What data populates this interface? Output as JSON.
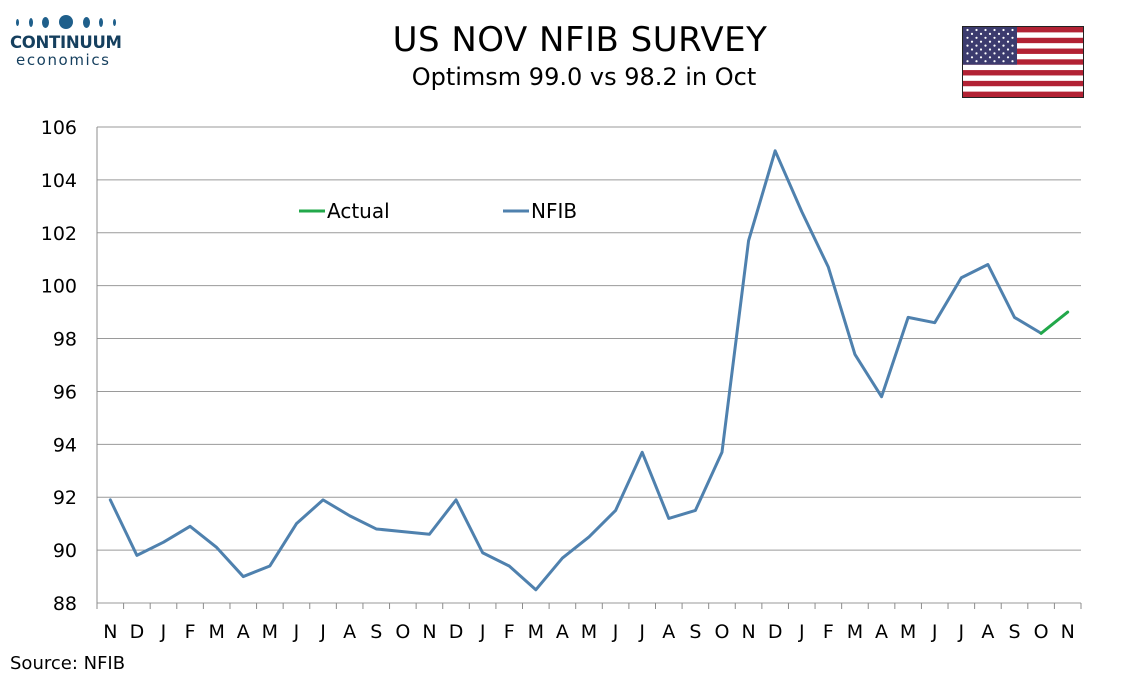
{
  "logo": {
    "name": "CONTINUUM",
    "sub": "economics"
  },
  "header": {
    "title": "US NOV NFIB SURVEY",
    "subtitle": "Optimsm 99.0 vs 98.2 in Oct"
  },
  "flag": {
    "icon": "us-flag-icon"
  },
  "source": "Source: NFIB",
  "colors": {
    "nfib": "#4f81ae",
    "actual": "#22a84a",
    "grid": "#9a9a9a"
  },
  "chart_data": {
    "type": "line",
    "categories": [
      "N",
      "D",
      "J",
      "F",
      "M",
      "A",
      "M",
      "J",
      "J",
      "A",
      "S",
      "O",
      "N",
      "D",
      "J",
      "F",
      "M",
      "A",
      "M",
      "J",
      "J",
      "A",
      "S",
      "O",
      "N",
      "D",
      "J",
      "F",
      "M",
      "A",
      "M",
      "J",
      "J",
      "A",
      "S",
      "O",
      "N"
    ],
    "ylim": [
      88,
      106
    ],
    "yticks": [
      88,
      90,
      92,
      94,
      96,
      98,
      100,
      102,
      104,
      106
    ],
    "grid": true,
    "legend_placement": "top-left",
    "series": [
      {
        "name": "NFIB",
        "color": "#4f81ae",
        "values": [
          91.9,
          89.8,
          90.3,
          90.9,
          90.1,
          89.0,
          89.4,
          91.0,
          91.9,
          91.3,
          90.8,
          90.7,
          90.6,
          91.9,
          89.9,
          89.4,
          88.5,
          89.7,
          90.5,
          91.5,
          93.7,
          91.2,
          91.5,
          93.7,
          101.7,
          105.1,
          102.8,
          100.7,
          97.4,
          95.8,
          98.8,
          98.6,
          100.3,
          100.8,
          98.8,
          98.2,
          null
        ]
      },
      {
        "name": "Actual",
        "color": "#22a84a",
        "values": [
          null,
          null,
          null,
          null,
          null,
          null,
          null,
          null,
          null,
          null,
          null,
          null,
          null,
          null,
          null,
          null,
          null,
          null,
          null,
          null,
          null,
          null,
          null,
          null,
          null,
          null,
          null,
          null,
          null,
          null,
          null,
          null,
          null,
          null,
          null,
          98.2,
          99.0
        ]
      }
    ],
    "legend": [
      {
        "name": "Actual",
        "color": "#22a84a"
      },
      {
        "name": "NFIB",
        "color": "#4f81ae"
      }
    ]
  }
}
